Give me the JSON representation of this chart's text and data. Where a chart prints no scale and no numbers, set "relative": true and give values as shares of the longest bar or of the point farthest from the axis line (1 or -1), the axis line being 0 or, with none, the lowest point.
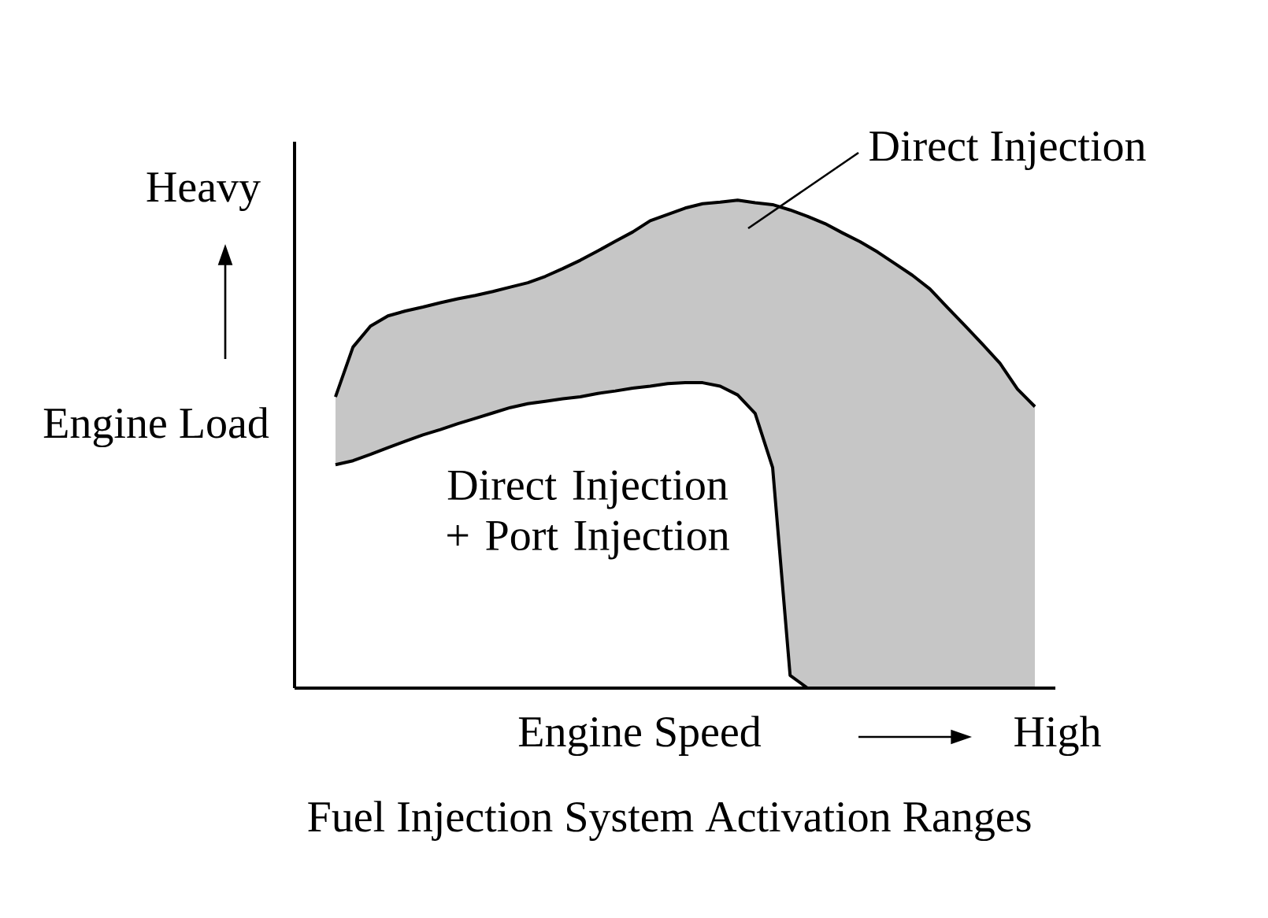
{
  "chart_data": {
    "type": "area",
    "title": "Fuel Injection System Activation Ranges",
    "xlabel": "Engine Speed",
    "ylabel": "Engine Load",
    "annotations": [
      "Heavy",
      "High"
    ],
    "categories": [
      null,
      null,
      null,
      null,
      null,
      null,
      null,
      null,
      null,
      null,
      null,
      null,
      null,
      null,
      null,
      null,
      null,
      null,
      null,
      null,
      null,
      null,
      null,
      null,
      null,
      null,
      null,
      null,
      null,
      null,
      null,
      null,
      null,
      null,
      null,
      null,
      null,
      null,
      null,
      null,
      null
    ],
    "stacked": true,
    "relative": true,
    "series": [
      {
        "name": "Direct Injection + Port Injection",
        "color": "#ffffff",
        "values": [
          0.458,
          0.466,
          0.479,
          0.493,
          0.506,
          0.519,
          0.53,
          0.542,
          0.553,
          0.564,
          0.575,
          0.583,
          0.588,
          0.593,
          0.597,
          0.604,
          0.609,
          0.615,
          0.619,
          0.624,
          0.626,
          0.626,
          0.619,
          0.601,
          0.563,
          0.452,
          0.026,
          0,
          0,
          0,
          0,
          0,
          0,
          0,
          0,
          0,
          0,
          0,
          0,
          0,
          0
        ]
      },
      {
        "name": "Direct Injection",
        "color": "#c6c6c6",
        "values": [
          0.139,
          0.233,
          0.263,
          0.27,
          0.267,
          0.262,
          0.26,
          0.256,
          0.252,
          0.249,
          0.247,
          0.248,
          0.256,
          0.267,
          0.28,
          0.292,
          0.307,
          0.32,
          0.339,
          0.347,
          0.358,
          0.367,
          0.377,
          0.399,
          0.432,
          0.539,
          0.954,
          0.967,
          0.952,
          0.933,
          0.915,
          0.894,
          0.87,
          0.846,
          0.818,
          0.78,
          0.743,
          0.705,
          0.666,
          0.613,
          0.577
        ]
      }
    ]
  }
}
